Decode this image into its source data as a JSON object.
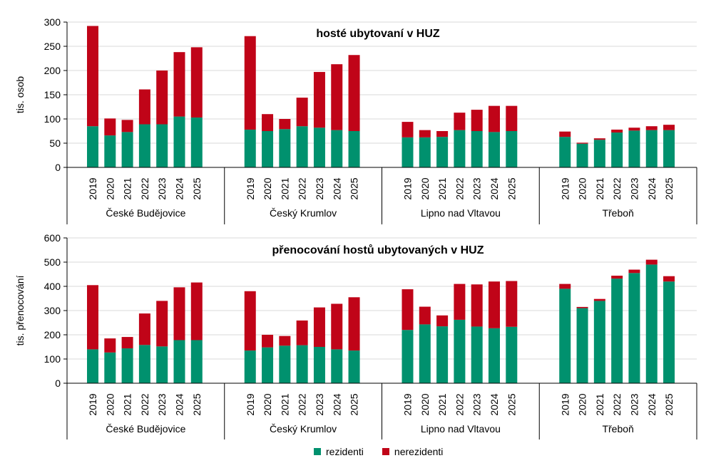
{
  "colors": {
    "rezidenti": "#00916e",
    "nerezidenti": "#c00418",
    "grid": "#d9d9d9",
    "axis": "#000000"
  },
  "legend": {
    "rezidenti": "rezidenti",
    "nerezidenti": "nerezidenti"
  },
  "chart_data": [
    {
      "type": "bar",
      "stacked": true,
      "title": "hosté ubytovaní v HUZ",
      "ylabel": "tis. osob",
      "xlabel": "",
      "ylim": [
        0,
        300
      ],
      "yticks": [
        0,
        50,
        100,
        150,
        200,
        250,
        300
      ],
      "grid": true,
      "groups": [
        "České Budějovice",
        "Český Krumlov",
        "Lipno nad Vltavou",
        "Třeboň"
      ],
      "categories": [
        "2019",
        "2020",
        "2021",
        "2022",
        "2023",
        "2024",
        "2025"
      ],
      "series": [
        {
          "name": "rezidenti",
          "values": [
            [
              85,
              66,
              73,
              89,
              89,
              105,
              103
            ],
            [
              78,
              75,
              79,
              85,
              82,
              77,
              75
            ],
            [
              62,
              62,
              63,
              77,
              75,
              73,
              75
            ],
            [
              63,
              49,
              57,
              72,
              76,
              77,
              77
            ]
          ]
        },
        {
          "name": "nerezidenti",
          "values": [
            [
              207,
              35,
              25,
              72,
              111,
              133,
              145
            ],
            [
              193,
              35,
              21,
              59,
              115,
              136,
              157
            ],
            [
              32,
              15,
              12,
              36,
              44,
              54,
              52
            ],
            [
              11,
              2,
              3,
              6,
              6,
              8,
              11
            ]
          ]
        }
      ]
    },
    {
      "type": "bar",
      "stacked": true,
      "title": "přenocování hostů ubytovaných v HUZ",
      "ylabel": "tis. přenocování",
      "xlabel": "",
      "ylim": [
        0,
        600
      ],
      "yticks": [
        0,
        100,
        200,
        300,
        400,
        500,
        600
      ],
      "grid": true,
      "groups": [
        "České Budějovice",
        "Český Krumlov",
        "Lipno nad Vltavou",
        "Třeboň"
      ],
      "categories": [
        "2019",
        "2020",
        "2021",
        "2022",
        "2023",
        "2024",
        "2025"
      ],
      "series": [
        {
          "name": "rezidenti",
          "values": [
            [
              140,
              127,
              144,
              158,
              152,
              178,
              178
            ],
            [
              135,
              148,
              155,
              157,
              150,
              140,
              135
            ],
            [
              220,
              243,
              235,
              262,
              234,
              227,
              233
            ],
            [
              390,
              310,
              340,
              432,
              455,
              490,
              420
            ]
          ]
        },
        {
          "name": "nerezidenti",
          "values": [
            [
              265,
              58,
              47,
              130,
              188,
              218,
              238
            ],
            [
              245,
              52,
              40,
              102,
              163,
              188,
              220
            ],
            [
              168,
              73,
              45,
              148,
              174,
              193,
              189
            ],
            [
              20,
              5,
              8,
              12,
              14,
              20,
              22
            ]
          ]
        }
      ]
    }
  ]
}
